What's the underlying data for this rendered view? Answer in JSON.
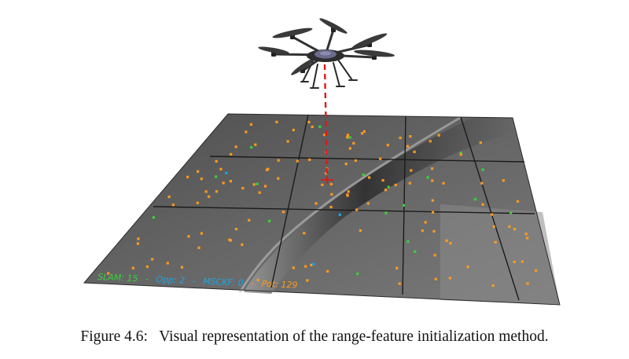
{
  "figure": {
    "overlay_text": {
      "slam_label": "SLAM: 15",
      "opp_label": "Opp: 2",
      "msckf_label": "MSCKF: 0",
      "pot_label": "Pot: 129",
      "separator": "-"
    },
    "colors": {
      "slam": "#39d13c",
      "opp": "#1aa6e6",
      "msckf": "#ffffff",
      "pot": "#ff9a1f",
      "range_line": "#e01818",
      "terrain": "#5b5b5b",
      "grid": "#1b1b1b",
      "drone_body": "#6a6a8c"
    },
    "icons": [
      "hexacopter-drone-icon",
      "range-beam-line",
      "terrain-map-image"
    ]
  },
  "caption": {
    "label": "Figure 4.6:",
    "text": "Visual representation of the range-feature initialization method."
  }
}
